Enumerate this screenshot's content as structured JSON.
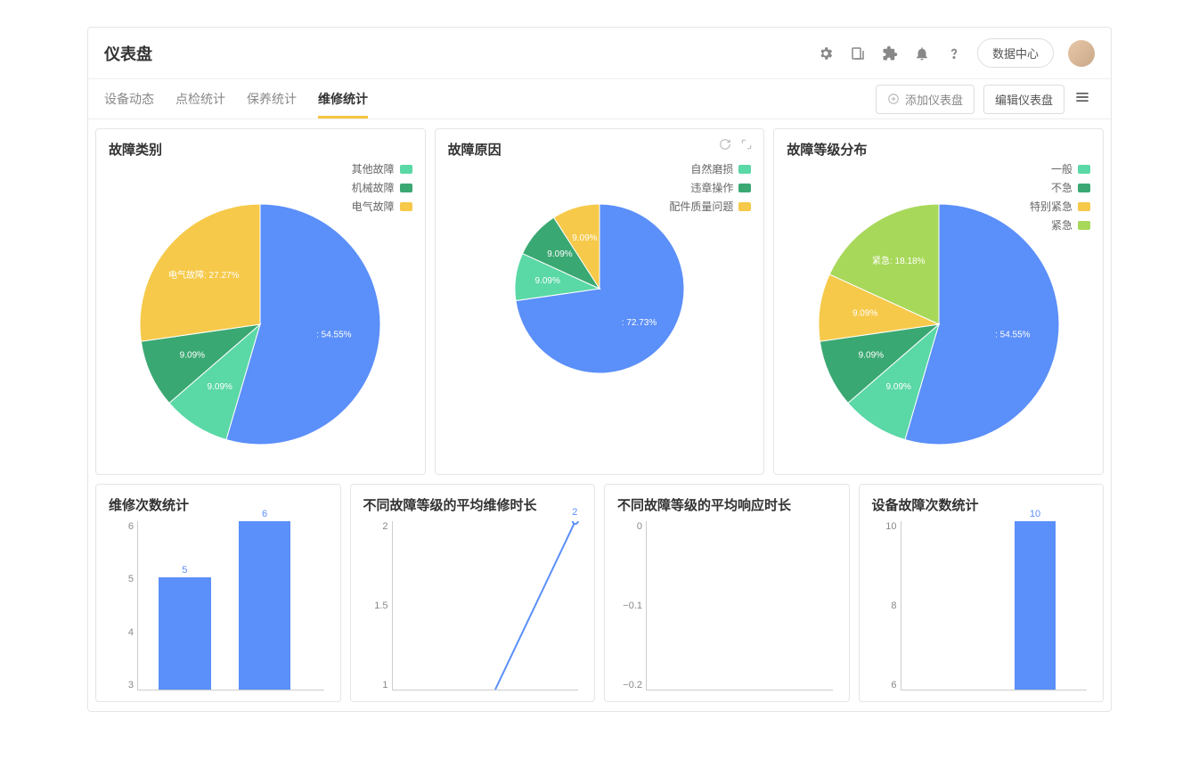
{
  "header": {
    "title": "仪表盘",
    "data_center": "数据中心"
  },
  "tabs": {
    "items": [
      "设备动态",
      "点检统计",
      "保养统计",
      "维修统计"
    ],
    "active_index": 3,
    "add": "添加仪表盘",
    "edit": "编辑仪表盘"
  },
  "colors": {
    "blue": "#5b8ff9",
    "green": "#5ad8a6",
    "darkgreen": "#3aa872",
    "yellow": "#f6c94a",
    "lime": "#a8d85a",
    "axis": "#888888"
  },
  "pies": [
    {
      "title": "故障类别",
      "show_tools": false,
      "radius": 135,
      "legend": [
        {
          "label": "其他故障",
          "color": "#5ad8a6"
        },
        {
          "label": "机械故障",
          "color": "#3aa872"
        },
        {
          "label": "电气故障",
          "color": "#f6c94a"
        }
      ],
      "slices": [
        {
          "pct": 54.55,
          "color": "#5b8ff9",
          "label": ": 54.55%"
        },
        {
          "pct": 9.09,
          "color": "#5ad8a6",
          "label": "9.09%"
        },
        {
          "pct": 9.09,
          "color": "#3aa872",
          "label": "9.09%"
        },
        {
          "pct": 27.27,
          "color": "#f6c94a",
          "label": "电气故障: 27.27%"
        }
      ]
    },
    {
      "title": "故障原因",
      "show_tools": true,
      "radius": 95,
      "legend": [
        {
          "label": "自然磨损",
          "color": "#5ad8a6"
        },
        {
          "label": "违章操作",
          "color": "#3aa872"
        },
        {
          "label": "配件质量问题",
          "color": "#f6c94a"
        }
      ],
      "slices": [
        {
          "pct": 72.73,
          "color": "#5b8ff9",
          "label": ": 72.73%"
        },
        {
          "pct": 9.09,
          "color": "#5ad8a6",
          "label": "9.09%"
        },
        {
          "pct": 9.09,
          "color": "#3aa872",
          "label": "9.09%"
        },
        {
          "pct": 9.09,
          "color": "#f6c94a",
          "label": "9.09%"
        }
      ]
    },
    {
      "title": "故障等级分布",
      "show_tools": false,
      "radius": 135,
      "legend": [
        {
          "label": "一般",
          "color": "#5ad8a6"
        },
        {
          "label": "不急",
          "color": "#3aa872"
        },
        {
          "label": "特别紧急",
          "color": "#f6c94a"
        },
        {
          "label": "紧急",
          "color": "#a8d85a"
        }
      ],
      "slices": [
        {
          "pct": 54.55,
          "color": "#5b8ff9",
          "label": ": 54.55%"
        },
        {
          "pct": 9.09,
          "color": "#5ad8a6",
          "label": "9.09%"
        },
        {
          "pct": 9.09,
          "color": "#3aa872",
          "label": "9.09%"
        },
        {
          "pct": 9.09,
          "color": "#f6c94a",
          "label": "9.09%"
        },
        {
          "pct": 18.18,
          "color": "#a8d85a",
          "label": "紧急: 18.18%"
        }
      ]
    }
  ],
  "row2": [
    {
      "title": "维修次数统计",
      "type": "bar",
      "y_ticks": [
        "6",
        "5",
        "4",
        "3"
      ],
      "y_min": 3,
      "y_max": 6,
      "bars": [
        {
          "x": 0.25,
          "value": 5,
          "label": "5",
          "width": 0.28
        },
        {
          "x": 0.68,
          "value": 6,
          "label": "6",
          "width": 0.28
        }
      ]
    },
    {
      "title": "不同故障等级的平均维修时长",
      "type": "line",
      "y_ticks": [
        "2",
        "1.5",
        "1"
      ],
      "y_min": 1,
      "y_max": 2,
      "points": [
        {
          "x": 0.55,
          "y": 0
        },
        {
          "x": 0.98,
          "y": 2
        }
      ],
      "end_label": "2"
    },
    {
      "title": "不同故障等级的平均响应时长",
      "type": "axis",
      "y_ticks": [
        "0",
        "−0.1",
        "−0.2"
      ],
      "y_min": -0.2,
      "y_max": 0
    },
    {
      "title": "设备故障次数统计",
      "type": "bar",
      "y_ticks": [
        "10",
        "8",
        "6"
      ],
      "y_min": 6,
      "y_max": 10,
      "bars": [
        {
          "x": 0.72,
          "value": 10,
          "label": "10",
          "width": 0.22
        }
      ]
    }
  ]
}
